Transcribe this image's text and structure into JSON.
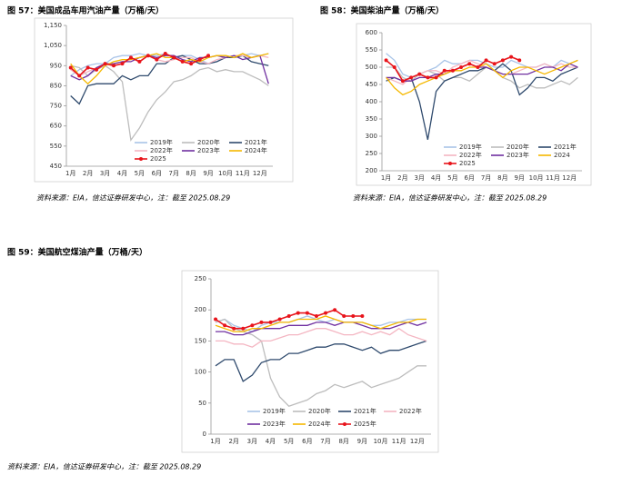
{
  "chart_data": [
    {
      "type": "line",
      "title": "图 57：美国成品车用汽油产量（万桶/天）",
      "source": "资料来源：EIA，信达证券研发中心，注：截至 2025.08.29",
      "categories": [
        "1月",
        null,
        "2月",
        null,
        "3月",
        null,
        "4月",
        null,
        "5月",
        null,
        "6月",
        null,
        "7月",
        null,
        "8月",
        null,
        "9月",
        null,
        "10月",
        null,
        "11月",
        null,
        "12月",
        null
      ],
      "ylim": [
        450,
        1150
      ],
      "yticks": [
        450,
        550,
        650,
        750,
        850,
        950,
        {
          "value": 1050,
          "label": "1,050"
        },
        {
          "value": 1150,
          "label": "1,150"
        }
      ],
      "series": [
        {
          "name": "2019年",
          "color": "#a9c4e8",
          "values": [
            900,
            930,
            950,
            960,
            960,
            990,
            1000,
            1000,
            1010,
            1000,
            1000,
            1010,
            990,
            1000,
            1000,
            980,
            960,
            970,
            1000,
            990,
            1000,
            1010,
            1000,
            1010
          ]
        },
        {
          "name": "2020年",
          "color": "#bdbdbd",
          "values": [
            950,
            940,
            900,
            930,
            950,
            920,
            870,
            580,
            640,
            720,
            780,
            820,
            870,
            880,
            900,
            930,
            940,
            920,
            930,
            920,
            920,
            900,
            880,
            850
          ]
        },
        {
          "name": "2021年",
          "color": "#2f4a6d",
          "values": [
            800,
            760,
            850,
            860,
            860,
            860,
            900,
            880,
            900,
            900,
            960,
            960,
            990,
            1000,
            980,
            960,
            960,
            970,
            990,
            990,
            1000,
            970,
            960,
            950
          ]
        },
        {
          "name": "2022年",
          "color": "#f4b6c2",
          "values": [
            930,
            900,
            920,
            940,
            960,
            960,
            970,
            980,
            990,
            1000,
            980,
            970,
            980,
            990,
            990,
            970,
            960,
            980,
            990,
            1000,
            1000,
            990,
            1000,
            990
          ]
        },
        {
          "name": "2023年",
          "color": "#7030a0",
          "values": [
            900,
            880,
            900,
            940,
            960,
            960,
            970,
            970,
            990,
            1000,
            990,
            1000,
            1000,
            980,
            970,
            990,
            990,
            1000,
            990,
            1000,
            980,
            990,
            1000,
            860
          ]
        },
        {
          "name": "2024年",
          "color": "#f5b800",
          "values": [
            960,
            900,
            860,
            900,
            950,
            970,
            980,
            980,
            990,
            1000,
            1010,
            990,
            990,
            970,
            980,
            970,
            990,
            1000,
            1000,
            990,
            1010,
            990,
            1000,
            1010
          ]
        },
        {
          "name": "2025",
          "color": "#e8141b",
          "marker": true,
          "values": [
            940,
            900,
            940,
            930,
            960,
            950,
            960,
            990,
            970,
            1000,
            980,
            1010,
            990,
            970,
            960,
            980,
            1000,
            null,
            null,
            null,
            null,
            null,
            null,
            null
          ]
        }
      ]
    },
    {
      "type": "line",
      "title": "图 58：美国柴油产量（万桶/天）",
      "source": "资料来源：EIA，信达证券研发中心，注：截至 2025.08.29",
      "categories": [
        "1月",
        null,
        "2月",
        null,
        "3月",
        null,
        "4月",
        null,
        "5月",
        null,
        "6月",
        null,
        "7月",
        null,
        "8月",
        null,
        "9月",
        null,
        "10月",
        null,
        "11月",
        null,
        "12月",
        null
      ],
      "ylim": [
        200,
        600
      ],
      "yticks": [
        200,
        250,
        300,
        350,
        400,
        450,
        500,
        550,
        600
      ],
      "series": [
        {
          "name": "2019年",
          "color": "#a9c4e8",
          "values": [
            540,
            520,
            480,
            470,
            480,
            490,
            500,
            520,
            510,
            510,
            520,
            520,
            510,
            500,
            500,
            520,
            510,
            500,
            500,
            510,
            500,
            520,
            510,
            520
          ]
        },
        {
          "name": "2020年",
          "color": "#bdbdbd",
          "values": [
            500,
            500,
            470,
            460,
            480,
            490,
            480,
            460,
            470,
            470,
            460,
            480,
            500,
            490,
            470,
            460,
            440,
            450,
            440,
            440,
            450,
            460,
            450,
            470
          ]
        },
        {
          "name": "2021年",
          "color": "#2f4a6d",
          "values": [
            460,
            470,
            460,
            470,
            400,
            290,
            430,
            460,
            470,
            480,
            490,
            490,
            500,
            490,
            510,
            490,
            420,
            440,
            470,
            470,
            460,
            480,
            490,
            500
          ]
        },
        {
          "name": "2022年",
          "color": "#f4b6c2",
          "values": [
            470,
            460,
            450,
            470,
            480,
            490,
            490,
            480,
            500,
            510,
            520,
            510,
            500,
            490,
            480,
            480,
            490,
            500,
            500,
            510,
            500,
            510,
            500,
            500
          ]
        },
        {
          "name": "2023年",
          "color": "#7030a0",
          "values": [
            470,
            470,
            460,
            460,
            470,
            470,
            480,
            480,
            490,
            500,
            510,
            500,
            500,
            490,
            480,
            480,
            480,
            480,
            490,
            500,
            500,
            490,
            510,
            500
          ]
        },
        {
          "name": "2024",
          "color": "#f5b800",
          "values": [
            470,
            440,
            420,
            430,
            450,
            460,
            470,
            480,
            490,
            490,
            500,
            500,
            510,
            490,
            470,
            490,
            500,
            500,
            490,
            480,
            490,
            500,
            510,
            520
          ]
        },
        {
          "name": "2025",
          "color": "#e8141b",
          "marker": true,
          "values": [
            520,
            500,
            460,
            470,
            480,
            470,
            470,
            490,
            490,
            500,
            510,
            500,
            520,
            510,
            520,
            530,
            520,
            null,
            null,
            null,
            null,
            null,
            null,
            null
          ]
        }
      ]
    },
    {
      "type": "line",
      "title": "图 59：美国航空煤油产量（万桶/天）",
      "source": "资料来源：EIA，信达证券研发中心，注：截至 2025.08.29",
      "categories": [
        "1月",
        null,
        "2月",
        null,
        "3月",
        null,
        "4月",
        null,
        "5月",
        null,
        "6月",
        null,
        "7月",
        null,
        "8月",
        null,
        "9月",
        null,
        "10月",
        null,
        "11月",
        null,
        "12月",
        null
      ],
      "ylim": [
        0,
        250
      ],
      "yticks": [
        0,
        50,
        100,
        150,
        200,
        250
      ],
      "series": [
        {
          "name": "2019年",
          "color": "#a9c4e8",
          "values": [
            180,
            185,
            175,
            170,
            165,
            175,
            180,
            180,
            180,
            185,
            190,
            185,
            180,
            185,
            180,
            180,
            180,
            175,
            175,
            180,
            180,
            185,
            185,
            185
          ]
        },
        {
          "name": "2020年",
          "color": "#bdbdbd",
          "values": [
            180,
            185,
            170,
            165,
            160,
            150,
            90,
            60,
            45,
            50,
            55,
            65,
            70,
            80,
            75,
            80,
            85,
            75,
            80,
            85,
            90,
            100,
            110,
            110
          ]
        },
        {
          "name": "2021年",
          "color": "#2f4a6d",
          "values": [
            110,
            120,
            120,
            85,
            95,
            115,
            120,
            120,
            130,
            130,
            135,
            140,
            140,
            145,
            145,
            140,
            135,
            140,
            130,
            135,
            135,
            140,
            145,
            150
          ]
        },
        {
          "name": "2022年",
          "color": "#f4b6c2",
          "values": [
            150,
            150,
            145,
            145,
            140,
            150,
            150,
            155,
            160,
            160,
            165,
            170,
            170,
            165,
            160,
            160,
            165,
            160,
            165,
            160,
            170,
            160,
            155,
            150
          ]
        },
        {
          "name": "2023年",
          "color": "#7030a0",
          "values": [
            165,
            165,
            160,
            160,
            165,
            170,
            170,
            170,
            175,
            175,
            175,
            180,
            180,
            175,
            180,
            180,
            175,
            170,
            170,
            170,
            175,
            180,
            175,
            180
          ]
        },
        {
          "name": "2024年",
          "color": "#f5b800",
          "values": [
            175,
            170,
            165,
            165,
            170,
            170,
            175,
            180,
            180,
            185,
            185,
            185,
            190,
            185,
            180,
            180,
            180,
            175,
            170,
            175,
            180,
            180,
            185,
            185
          ]
        },
        {
          "name": "2025年",
          "color": "#e8141b",
          "marker": true,
          "values": [
            185,
            175,
            170,
            170,
            175,
            180,
            180,
            185,
            190,
            195,
            195,
            190,
            195,
            200,
            190,
            190,
            190,
            null,
            null,
            null,
            null,
            null,
            null,
            null
          ]
        }
      ]
    }
  ]
}
